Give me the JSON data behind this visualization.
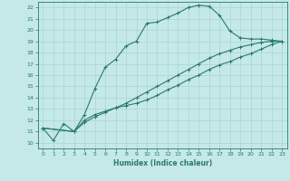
{
  "xlabel": "Humidex (Indice chaleur)",
  "xlim": [
    -0.5,
    23.5
  ],
  "ylim": [
    9.5,
    22.5
  ],
  "yticks": [
    10,
    11,
    12,
    13,
    14,
    15,
    16,
    17,
    18,
    19,
    20,
    21,
    22
  ],
  "xticks": [
    0,
    1,
    2,
    3,
    4,
    5,
    6,
    7,
    8,
    9,
    10,
    11,
    12,
    13,
    14,
    15,
    16,
    17,
    18,
    19,
    20,
    21,
    22,
    23
  ],
  "bg_color": "#c5e8e8",
  "grid_color": "#aad4d4",
  "line_color": "#2a7a6a",
  "line1_x": [
    0,
    1,
    2,
    3,
    4,
    5,
    6,
    7,
    8,
    9,
    10,
    11,
    12,
    13,
    14,
    15,
    16,
    17,
    18,
    19,
    20,
    21,
    22,
    23
  ],
  "line1_y": [
    11.3,
    10.2,
    11.7,
    11.0,
    12.5,
    14.8,
    16.7,
    17.4,
    18.6,
    19.0,
    20.6,
    20.7,
    21.1,
    21.5,
    22.0,
    22.2,
    22.1,
    21.3,
    19.9,
    19.3,
    19.2,
    19.2,
    19.1,
    19.0
  ],
  "line2_x": [
    0,
    3,
    4,
    5,
    6,
    7,
    8,
    9,
    10,
    11,
    12,
    13,
    14,
    15,
    16,
    17,
    18,
    19,
    20,
    21,
    22,
    23
  ],
  "line2_y": [
    11.3,
    11.0,
    12.0,
    12.5,
    12.8,
    13.1,
    13.3,
    13.5,
    13.8,
    14.2,
    14.7,
    15.1,
    15.6,
    16.0,
    16.5,
    16.9,
    17.2,
    17.6,
    17.9,
    18.3,
    18.7,
    19.0
  ],
  "line3_x": [
    0,
    3,
    4,
    5,
    6,
    7,
    8,
    9,
    10,
    11,
    12,
    13,
    14,
    15,
    16,
    17,
    18,
    19,
    20,
    21,
    22,
    23
  ],
  "line3_y": [
    11.3,
    11.0,
    11.8,
    12.3,
    12.7,
    13.1,
    13.5,
    14.0,
    14.5,
    15.0,
    15.5,
    16.0,
    16.5,
    17.0,
    17.5,
    17.9,
    18.2,
    18.5,
    18.7,
    18.9,
    19.0,
    19.0
  ]
}
